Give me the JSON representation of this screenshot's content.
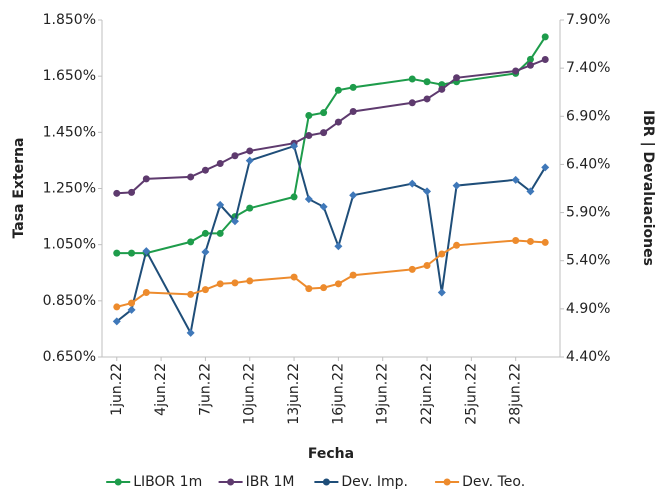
{
  "chart_data": {
    "type": "line",
    "x_label": "Fecha",
    "y_label": "Tasa Externa",
    "y2_label": "IBR | Devaluaciones",
    "x": [
      "2022-06-01",
      "2022-06-02",
      "2022-06-03",
      "2022-06-06",
      "2022-06-07",
      "2022-06-08",
      "2022-06-09",
      "2022-06-10",
      "2022-06-13",
      "2022-06-14",
      "2022-06-15",
      "2022-06-16",
      "2022-06-17",
      "2022-06-21",
      "2022-06-22",
      "2022-06-23",
      "2022-06-24",
      "2022-06-28",
      "2022-06-29",
      "2022-06-30"
    ],
    "xlim": [
      "2022-05-31",
      "2022-07-01"
    ],
    "xticks": [
      {
        "value": "2022-06-01",
        "label": "1jun.22"
      },
      {
        "value": "2022-06-04",
        "label": "4jun.22"
      },
      {
        "value": "2022-06-07",
        "label": "7jun.22"
      },
      {
        "value": "2022-06-10",
        "label": "10jun.22"
      },
      {
        "value": "2022-06-13",
        "label": "13jun.22"
      },
      {
        "value": "2022-06-16",
        "label": "16jun.22"
      },
      {
        "value": "2022-06-19",
        "label": "19jun.22"
      },
      {
        "value": "2022-06-22",
        "label": "22jun.22"
      },
      {
        "value": "2022-06-25",
        "label": "25jun.22"
      },
      {
        "value": "2022-06-28",
        "label": "28jun.22"
      }
    ],
    "ylim": [
      0.65,
      1.85
    ],
    "yticks": [
      {
        "value": 0.65,
        "label": "0.650%"
      },
      {
        "value": 0.85,
        "label": "0.850%"
      },
      {
        "value": 1.05,
        "label": "1.050%"
      },
      {
        "value": 1.25,
        "label": "1.250%"
      },
      {
        "value": 1.45,
        "label": "1.450%"
      },
      {
        "value": 1.65,
        "label": "1.650%"
      },
      {
        "value": 1.85,
        "label": "1.850%"
      }
    ],
    "y2lim": [
      4.4,
      7.9
    ],
    "y2ticks": [
      {
        "value": 4.4,
        "label": "4.40%"
      },
      {
        "value": 4.9,
        "label": "4.90%"
      },
      {
        "value": 5.4,
        "label": "5.40%"
      },
      {
        "value": 5.9,
        "label": "5.90%"
      },
      {
        "value": 6.4,
        "label": "6.40%"
      },
      {
        "value": 6.9,
        "label": "6.90%"
      },
      {
        "value": 7.4,
        "label": "7.40%"
      },
      {
        "value": 7.9,
        "label": "7.90%"
      }
    ],
    "series": [
      {
        "name": "LIBOR 1m",
        "color": "#1e9c4b",
        "values": [
          1.02,
          1.02,
          1.02,
          1.06,
          1.09,
          1.09,
          1.15,
          1.18,
          1.22,
          1.51,
          1.52,
          1.6,
          1.61,
          1.64,
          1.63,
          1.62,
          1.63,
          1.66,
          1.71,
          1.79
        ]
      },
      {
        "name": "IBR 1M",
        "color": "#5e3a6e",
        "axis": "y2",
        "values": [
          6.1,
          6.11,
          6.25,
          6.27,
          6.34,
          6.41,
          6.49,
          6.54,
          6.62,
          6.7,
          6.73,
          6.84,
          6.95,
          7.04,
          7.08,
          7.18,
          7.3,
          7.37,
          7.43,
          7.49
        ]
      },
      {
        "name": "Dev. Imp.",
        "color": "#1f4e79",
        "axis": "y2",
        "values": [
          4.77,
          4.89,
          5.5,
          4.65,
          5.49,
          5.98,
          5.81,
          6.44,
          6.59,
          6.04,
          5.96,
          5.55,
          6.08,
          6.2,
          6.12,
          5.07,
          6.18,
          6.24,
          6.12,
          6.37
        ]
      },
      {
        "name": "Dev. Teo.",
        "color": "#ed8b2d",
        "axis": "y2",
        "values": [
          4.92,
          4.96,
          5.07,
          5.05,
          5.1,
          5.16,
          5.17,
          5.19,
          5.23,
          5.11,
          5.12,
          5.16,
          5.25,
          5.31,
          5.35,
          5.47,
          5.56,
          5.61,
          5.6,
          5.59
        ]
      }
    ],
    "legend": "bottom",
    "grid": false
  }
}
